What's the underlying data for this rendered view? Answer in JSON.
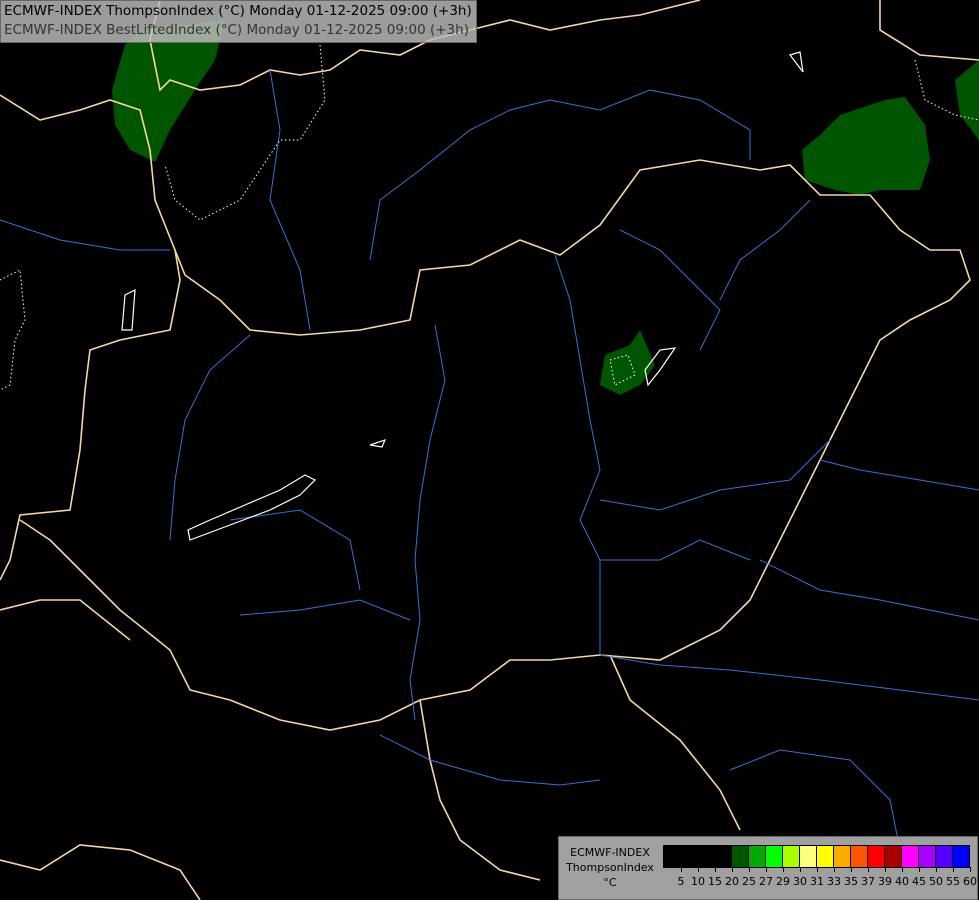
{
  "header": {
    "line1": "ECMWF-INDEX ThompsonIndex (°C) Monday 01-12-2025 09:00 (+3h)",
    "line2": "ECMWF-INDEX BestLiftedIndex (°C) Monday 01-12-2025 09:00 (+3h)"
  },
  "legend": {
    "title_line1": "ECMWF-INDEX",
    "title_line2": "ThompsonIndex",
    "unit": "°C",
    "colors": [
      "#000000",
      "#000000",
      "#000000",
      "#000000",
      "#005500",
      "#00aa00",
      "#00ff00",
      "#aaff00",
      "#ffff80",
      "#ffff00",
      "#ffaa00",
      "#ff5500",
      "#ff0000",
      "#aa0000",
      "#ff00ff",
      "#aa00ff",
      "#5500ff",
      "#0000ff"
    ],
    "labels": [
      "5",
      "10",
      "15",
      "20",
      "25",
      "27",
      "29",
      "30",
      "31",
      "33",
      "35",
      "37",
      "39",
      "40",
      "45",
      "50",
      "55",
      "60"
    ]
  },
  "map_colors": {
    "background": "#000000",
    "borders": "#f5d6a6",
    "rivers": "#3a6fd8",
    "lakes": "#ffffff",
    "index_fill": "#005500"
  }
}
